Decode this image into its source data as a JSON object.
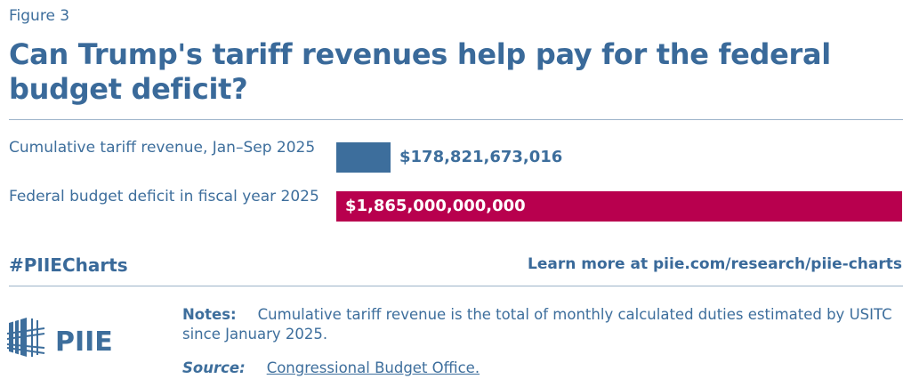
{
  "figure_label": "Figure 3",
  "title": "Can Trump's tariff revenues help pay for the federal budget deficit?",
  "chart_data": {
    "type": "bar",
    "orientation": "horizontal",
    "categories": [
      "Cumulative tariff revenue, Jan–Sep 2025",
      "Federal budget deficit in fiscal year 2025"
    ],
    "values": [
      178821673016,
      1865000000000
    ],
    "value_labels": [
      "$178,821,673,016",
      "$1,865,000,000,000"
    ],
    "colors": [
      "#3d6e9c",
      "#b8004e"
    ],
    "xlim": [
      0,
      1865000000000
    ]
  },
  "footer": {
    "hashtag": "#PIIECharts",
    "learn_more": "Learn more at piie.com/research/piie-charts",
    "logo_text": "PIIE",
    "notes_label": "Notes:",
    "notes_text": "Cumulative tariff revenue is the total of monthly calculated duties estimated by USITC since January 2025.",
    "source_label": "Source:",
    "source_text": "Congressional Budget Office."
  }
}
